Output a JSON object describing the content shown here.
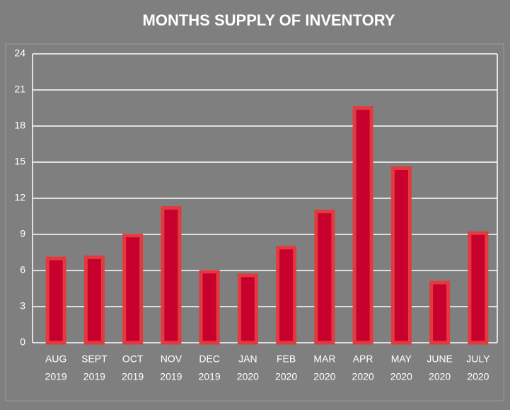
{
  "chart_data": {
    "type": "bar",
    "title": "MONTHS SUPPLY OF INVENTORY",
    "categories": [
      [
        "AUG",
        "2019"
      ],
      [
        "SEPT",
        "2019"
      ],
      [
        "OCT",
        "2019"
      ],
      [
        "NOV",
        "2019"
      ],
      [
        "DEC",
        "2019"
      ],
      [
        "JAN",
        "2020"
      ],
      [
        "FEB",
        "2020"
      ],
      [
        "MAR",
        "2020"
      ],
      [
        "APR",
        "2020"
      ],
      [
        "MAY",
        "2020"
      ],
      [
        "JUNE",
        "2020"
      ],
      [
        "JULY",
        "2020"
      ]
    ],
    "values": [
      7.0,
      7.1,
      8.9,
      11.2,
      5.9,
      5.6,
      7.9,
      10.9,
      19.5,
      14.5,
      5.0,
      9.1
    ],
    "color": "#c8002e",
    "edge_color": "#e23a3f",
    "ylim": [
      0,
      24
    ],
    "yticks": [
      0,
      3,
      6,
      9,
      12,
      15,
      18,
      21,
      24
    ],
    "grid": true
  }
}
